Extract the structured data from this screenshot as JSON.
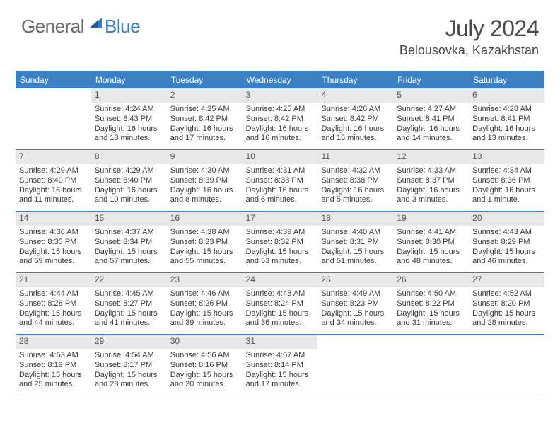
{
  "logo": {
    "general": "General",
    "blue": "Blue"
  },
  "title": "July 2024",
  "location": "Belousovka, Kazakhstan",
  "colors": {
    "accent": "#3b7fc4",
    "weekday_bg": "#3b7fc4",
    "weekday_fg": "#ffffff",
    "daynum_bg": "#e8e8e8",
    "text": "#3a3a3a",
    "title": "#4a4a4a"
  },
  "weekdays": [
    "Sunday",
    "Monday",
    "Tuesday",
    "Wednesday",
    "Thursday",
    "Friday",
    "Saturday"
  ],
  "weeks": [
    [
      {
        "n": "",
        "sunrise": "",
        "sunset": "",
        "daylight1": "",
        "daylight2": ""
      },
      {
        "n": "1",
        "sunrise": "Sunrise: 4:24 AM",
        "sunset": "Sunset: 8:43 PM",
        "daylight1": "Daylight: 16 hours",
        "daylight2": "and 18 minutes."
      },
      {
        "n": "2",
        "sunrise": "Sunrise: 4:25 AM",
        "sunset": "Sunset: 8:42 PM",
        "daylight1": "Daylight: 16 hours",
        "daylight2": "and 17 minutes."
      },
      {
        "n": "3",
        "sunrise": "Sunrise: 4:25 AM",
        "sunset": "Sunset: 8:42 PM",
        "daylight1": "Daylight: 16 hours",
        "daylight2": "and 16 minutes."
      },
      {
        "n": "4",
        "sunrise": "Sunrise: 4:26 AM",
        "sunset": "Sunset: 8:42 PM",
        "daylight1": "Daylight: 16 hours",
        "daylight2": "and 15 minutes."
      },
      {
        "n": "5",
        "sunrise": "Sunrise: 4:27 AM",
        "sunset": "Sunset: 8:41 PM",
        "daylight1": "Daylight: 16 hours",
        "daylight2": "and 14 minutes."
      },
      {
        "n": "6",
        "sunrise": "Sunrise: 4:28 AM",
        "sunset": "Sunset: 8:41 PM",
        "daylight1": "Daylight: 16 hours",
        "daylight2": "and 13 minutes."
      }
    ],
    [
      {
        "n": "7",
        "sunrise": "Sunrise: 4:29 AM",
        "sunset": "Sunset: 8:40 PM",
        "daylight1": "Daylight: 16 hours",
        "daylight2": "and 11 minutes."
      },
      {
        "n": "8",
        "sunrise": "Sunrise: 4:29 AM",
        "sunset": "Sunset: 8:40 PM",
        "daylight1": "Daylight: 16 hours",
        "daylight2": "and 10 minutes."
      },
      {
        "n": "9",
        "sunrise": "Sunrise: 4:30 AM",
        "sunset": "Sunset: 8:39 PM",
        "daylight1": "Daylight: 16 hours",
        "daylight2": "and 8 minutes."
      },
      {
        "n": "10",
        "sunrise": "Sunrise: 4:31 AM",
        "sunset": "Sunset: 8:38 PM",
        "daylight1": "Daylight: 16 hours",
        "daylight2": "and 6 minutes."
      },
      {
        "n": "11",
        "sunrise": "Sunrise: 4:32 AM",
        "sunset": "Sunset: 8:38 PM",
        "daylight1": "Daylight: 16 hours",
        "daylight2": "and 5 minutes."
      },
      {
        "n": "12",
        "sunrise": "Sunrise: 4:33 AM",
        "sunset": "Sunset: 8:37 PM",
        "daylight1": "Daylight: 16 hours",
        "daylight2": "and 3 minutes."
      },
      {
        "n": "13",
        "sunrise": "Sunrise: 4:34 AM",
        "sunset": "Sunset: 8:36 PM",
        "daylight1": "Daylight: 16 hours",
        "daylight2": "and 1 minute."
      }
    ],
    [
      {
        "n": "14",
        "sunrise": "Sunrise: 4:36 AM",
        "sunset": "Sunset: 8:35 PM",
        "daylight1": "Daylight: 15 hours",
        "daylight2": "and 59 minutes."
      },
      {
        "n": "15",
        "sunrise": "Sunrise: 4:37 AM",
        "sunset": "Sunset: 8:34 PM",
        "daylight1": "Daylight: 15 hours",
        "daylight2": "and 57 minutes."
      },
      {
        "n": "16",
        "sunrise": "Sunrise: 4:38 AM",
        "sunset": "Sunset: 8:33 PM",
        "daylight1": "Daylight: 15 hours",
        "daylight2": "and 55 minutes."
      },
      {
        "n": "17",
        "sunrise": "Sunrise: 4:39 AM",
        "sunset": "Sunset: 8:32 PM",
        "daylight1": "Daylight: 15 hours",
        "daylight2": "and 53 minutes."
      },
      {
        "n": "18",
        "sunrise": "Sunrise: 4:40 AM",
        "sunset": "Sunset: 8:31 PM",
        "daylight1": "Daylight: 15 hours",
        "daylight2": "and 51 minutes."
      },
      {
        "n": "19",
        "sunrise": "Sunrise: 4:41 AM",
        "sunset": "Sunset: 8:30 PM",
        "daylight1": "Daylight: 15 hours",
        "daylight2": "and 48 minutes."
      },
      {
        "n": "20",
        "sunrise": "Sunrise: 4:43 AM",
        "sunset": "Sunset: 8:29 PM",
        "daylight1": "Daylight: 15 hours",
        "daylight2": "and 46 minutes."
      }
    ],
    [
      {
        "n": "21",
        "sunrise": "Sunrise: 4:44 AM",
        "sunset": "Sunset: 8:28 PM",
        "daylight1": "Daylight: 15 hours",
        "daylight2": "and 44 minutes."
      },
      {
        "n": "22",
        "sunrise": "Sunrise: 4:45 AM",
        "sunset": "Sunset: 8:27 PM",
        "daylight1": "Daylight: 15 hours",
        "daylight2": "and 41 minutes."
      },
      {
        "n": "23",
        "sunrise": "Sunrise: 4:46 AM",
        "sunset": "Sunset: 8:26 PM",
        "daylight1": "Daylight: 15 hours",
        "daylight2": "and 39 minutes."
      },
      {
        "n": "24",
        "sunrise": "Sunrise: 4:48 AM",
        "sunset": "Sunset: 8:24 PM",
        "daylight1": "Daylight: 15 hours",
        "daylight2": "and 36 minutes."
      },
      {
        "n": "25",
        "sunrise": "Sunrise: 4:49 AM",
        "sunset": "Sunset: 8:23 PM",
        "daylight1": "Daylight: 15 hours",
        "daylight2": "and 34 minutes."
      },
      {
        "n": "26",
        "sunrise": "Sunrise: 4:50 AM",
        "sunset": "Sunset: 8:22 PM",
        "daylight1": "Daylight: 15 hours",
        "daylight2": "and 31 minutes."
      },
      {
        "n": "27",
        "sunrise": "Sunrise: 4:52 AM",
        "sunset": "Sunset: 8:20 PM",
        "daylight1": "Daylight: 15 hours",
        "daylight2": "and 28 minutes."
      }
    ],
    [
      {
        "n": "28",
        "sunrise": "Sunrise: 4:53 AM",
        "sunset": "Sunset: 8:19 PM",
        "daylight1": "Daylight: 15 hours",
        "daylight2": "and 25 minutes."
      },
      {
        "n": "29",
        "sunrise": "Sunrise: 4:54 AM",
        "sunset": "Sunset: 8:17 PM",
        "daylight1": "Daylight: 15 hours",
        "daylight2": "and 23 minutes."
      },
      {
        "n": "30",
        "sunrise": "Sunrise: 4:56 AM",
        "sunset": "Sunset: 8:16 PM",
        "daylight1": "Daylight: 15 hours",
        "daylight2": "and 20 minutes."
      },
      {
        "n": "31",
        "sunrise": "Sunrise: 4:57 AM",
        "sunset": "Sunset: 8:14 PM",
        "daylight1": "Daylight: 15 hours",
        "daylight2": "and 17 minutes."
      },
      {
        "n": "",
        "sunrise": "",
        "sunset": "",
        "daylight1": "",
        "daylight2": ""
      },
      {
        "n": "",
        "sunrise": "",
        "sunset": "",
        "daylight1": "",
        "daylight2": ""
      },
      {
        "n": "",
        "sunrise": "",
        "sunset": "",
        "daylight1": "",
        "daylight2": ""
      }
    ]
  ]
}
